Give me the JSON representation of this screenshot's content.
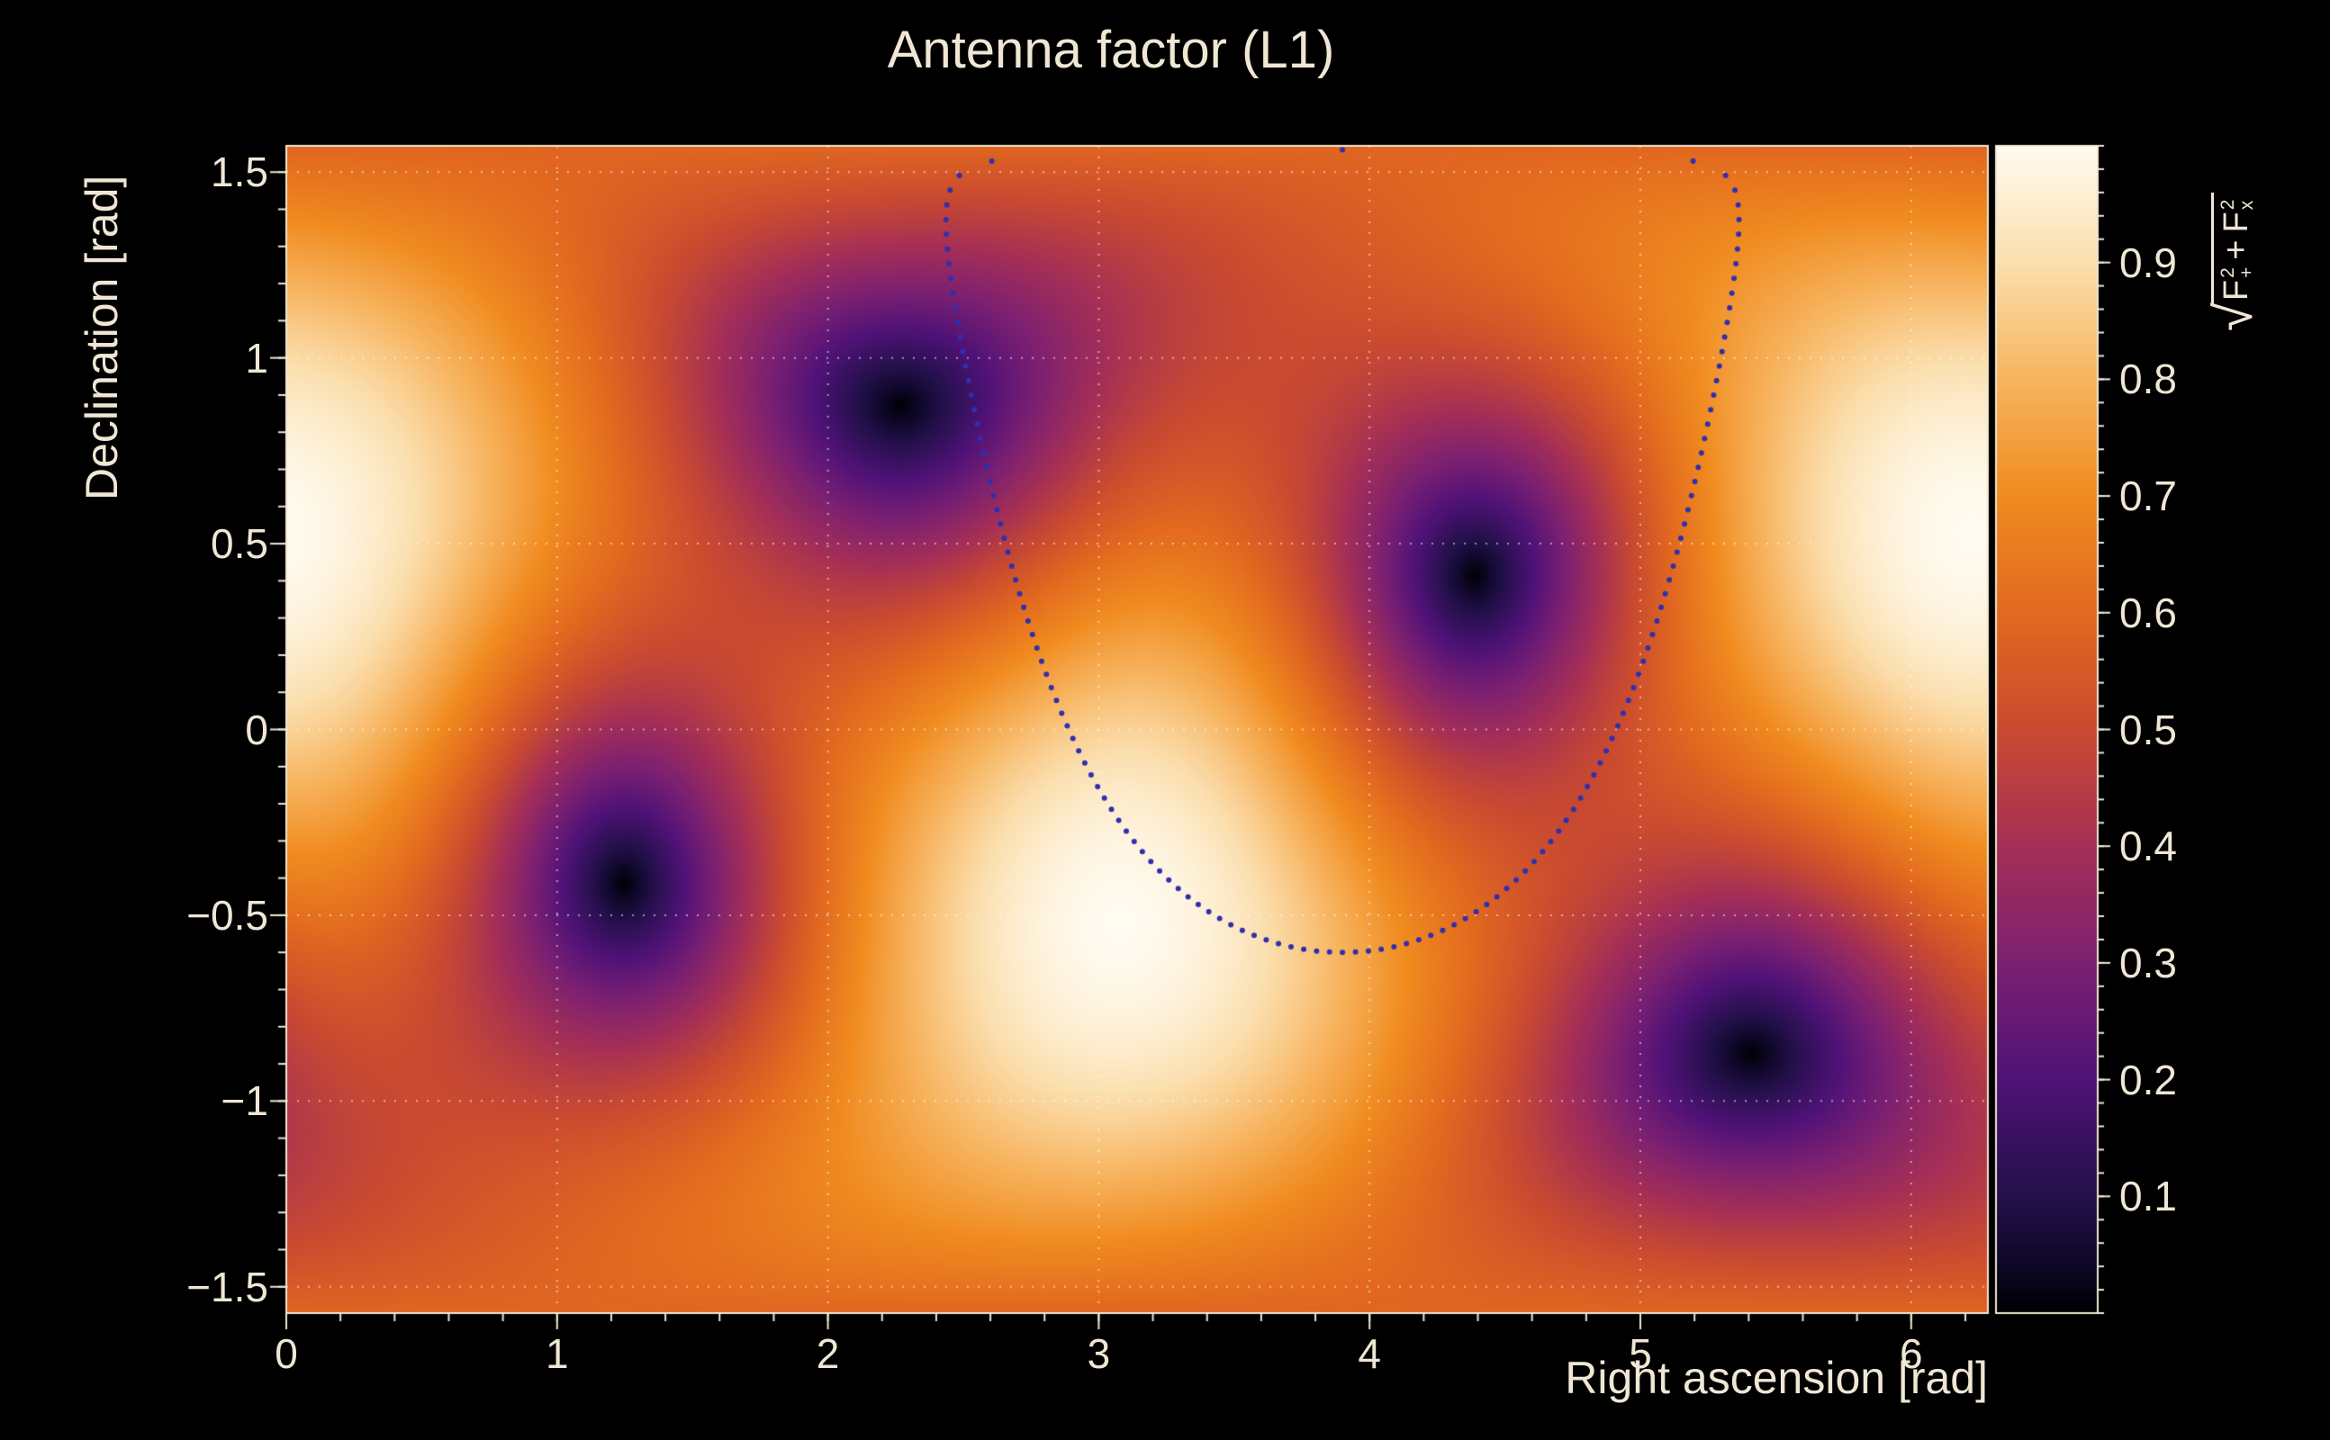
{
  "page": {
    "background_color": "#000000",
    "text_color": "#efe7d4"
  },
  "title": "Antenna factor (L1)",
  "chart_data": {
    "type": "heatmap",
    "title": "Antenna factor (L1)",
    "x_axis": {
      "label": "Right ascension [rad]",
      "min": 0,
      "max": 6.28319,
      "major_ticks": [
        {
          "value": 0,
          "label": "0"
        },
        {
          "value": 1,
          "label": "1"
        },
        {
          "value": 2,
          "label": "2"
        },
        {
          "value": 3,
          "label": "3"
        },
        {
          "value": 4,
          "label": "4"
        },
        {
          "value": 5,
          "label": "5"
        },
        {
          "value": 6,
          "label": "6"
        }
      ],
      "minor_tick_step": 0.2
    },
    "y_axis": {
      "label": "Declination [rad]",
      "min": -1.5708,
      "max": 1.5708,
      "major_ticks": [
        {
          "value": 1.5,
          "label": "1.5"
        },
        {
          "value": 1.0,
          "label": "1"
        },
        {
          "value": 0.5,
          "label": "0.5"
        },
        {
          "value": 0.0,
          "label": "0"
        },
        {
          "value": -0.5,
          "label": "−0.5"
        },
        {
          "value": -1.0,
          "label": "−1"
        },
        {
          "value": -1.5,
          "label": "−1.5"
        }
      ],
      "minor_tick_step": 0.1
    },
    "z_axis": {
      "label_text": "sqrt(F+^2 + Fx^2)",
      "label_parts": {
        "sqrt": "√",
        "f1": "F",
        "f1_sup": "2",
        "f1_sub": "+",
        "plus": "+",
        "f2": "F",
        "f2_sup": "2",
        "f2_sub": "x"
      },
      "min": 0,
      "max": 1,
      "major_ticks": [
        {
          "value": 0.1,
          "label": "0.1"
        },
        {
          "value": 0.2,
          "label": "0.2"
        },
        {
          "value": 0.3,
          "label": "0.3"
        },
        {
          "value": 0.4,
          "label": "0.4"
        },
        {
          "value": 0.5,
          "label": "0.5"
        },
        {
          "value": 0.6,
          "label": "0.6"
        },
        {
          "value": 0.7,
          "label": "0.7"
        },
        {
          "value": 0.8,
          "label": "0.8"
        },
        {
          "value": 0.9,
          "label": "0.9"
        }
      ],
      "minor_tick_step": 0.02
    },
    "field": {
      "formula": "sqrt(0.25*(1+cos^2(theta))^2*cos^2(2*phi) + cos^2(theta)*sin^2(2*phi))",
      "zenith": {
        "ra": 6.218,
        "dec": 0.526
      },
      "null_direction": {
        "ra": 2.27,
        "dec": 0.87
      },
      "maxima": [
        {
          "ra": 6.22,
          "dec": 0.53,
          "value": 1.0
        },
        {
          "ra": 3.08,
          "dec": -0.53,
          "value": 1.0
        }
      ],
      "nulls": [
        {
          "ra": 2.27,
          "dec": 0.87,
          "value": 0.0
        },
        {
          "ra": 4.4,
          "dec": 0.4,
          "value": 0.0
        },
        {
          "ra": 1.26,
          "dec": -0.4,
          "value": 0.0
        },
        {
          "ra": 5.41,
          "dec": -0.87,
          "value": 0.0
        }
      ]
    },
    "overlay_ring": {
      "type": "dotted-ring",
      "center": {
        "ra": 3.9,
        "dec": 0.48
      },
      "radius_rad": 1.08,
      "n_points": 140,
      "dot_radius": 3,
      "color": "#2f2fae"
    },
    "colormap_stops": [
      [
        0.0,
        "#000004"
      ],
      [
        0.05,
        "#10082c"
      ],
      [
        0.1,
        "#23104a"
      ],
      [
        0.2,
        "#4f1277"
      ],
      [
        0.3,
        "#7c2071"
      ],
      [
        0.4,
        "#a52f56"
      ],
      [
        0.5,
        "#c94a30"
      ],
      [
        0.6,
        "#e2691f"
      ],
      [
        0.7,
        "#f08b1f"
      ],
      [
        0.8,
        "#f7b45f"
      ],
      [
        0.9,
        "#fbdfae"
      ],
      [
        1.0,
        "#fffbf0"
      ]
    ],
    "grid": {
      "color": "rgba(255,255,255,0.55)",
      "dash": [
        2,
        10
      ]
    }
  }
}
